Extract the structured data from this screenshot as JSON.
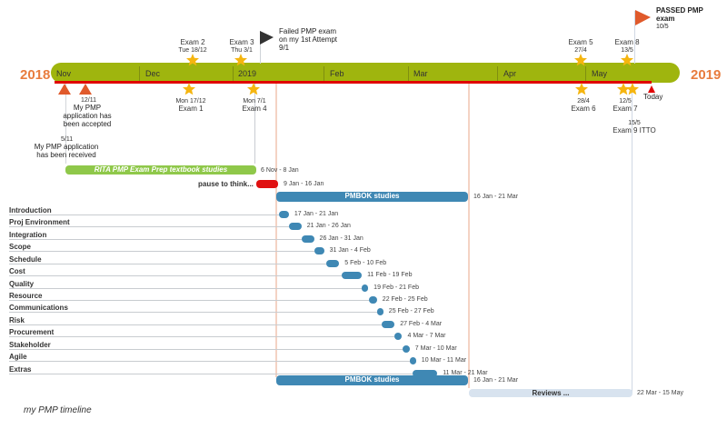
{
  "colors": {
    "timeline_band": "#9fb50e",
    "timeline_red": "#e00000",
    "star": "#f5b50f",
    "triangle": "#e05a2b",
    "year": "#e87c3e",
    "green_bar": "#8fc84a",
    "blue_bar": "#3f88b4",
    "red_bar": "#e01010",
    "review_bar": "#d8e3ef"
  },
  "timeline": {
    "year_start": "2018",
    "year_end": "2019",
    "months": [
      "Nov",
      "Dec",
      "2019",
      "Feb",
      "Mar",
      "Apr",
      "May"
    ]
  },
  "top_events": [
    {
      "title": "Exam 2",
      "date": "Tue 18/12"
    },
    {
      "title": "Exam 3",
      "date": "Thu 3/1"
    },
    {
      "title": "Exam 5",
      "date": "27/4"
    },
    {
      "title": "Exam 8",
      "date": "13/5"
    }
  ],
  "top_flags": {
    "failed": {
      "text1": "Failed PMP exam",
      "text2": "on my 1st Attempt",
      "date": "9/1"
    },
    "passed": {
      "text1": "PASSED PMP",
      "text2": "exam",
      "date": "10/5"
    }
  },
  "bottom_events": [
    {
      "date": "Mon 17/12",
      "title": "Exam 1"
    },
    {
      "date": "Mon 7/1",
      "title": "Exam 4"
    },
    {
      "date": "28/4",
      "title": "Exam 6"
    },
    {
      "date": "12/5",
      "title": "Exam 7"
    },
    {
      "date": "15/5",
      "title": "Exam 9 ITTO"
    }
  ],
  "milestones": {
    "accepted": {
      "date": "12/11",
      "lines": [
        "My PMP",
        "application has",
        "been accepted"
      ]
    },
    "received": {
      "date": "5/11",
      "lines": [
        "My PMP application",
        "has been received"
      ]
    },
    "today": "Today"
  },
  "phases": {
    "rita": {
      "label": "RITA PMP Exam Prep textbook studies",
      "dates": "6 Nov - 8 Jan"
    },
    "pause": {
      "label": "pause to think...",
      "dates": "9 Jan - 16 Jan"
    },
    "pmbok_top": {
      "label": "PMBOK studies",
      "dates": "16 Jan - 21 Mar"
    },
    "pmbok_bottom": {
      "label": "PMBOK studies",
      "dates": "16 Jan - 21 Mar"
    },
    "reviews": {
      "label": "Reviews ...",
      "dates": "22 Mar - 15 May"
    }
  },
  "tasks": [
    {
      "label": "Introduction",
      "dates": "17 Jan - 21 Jan",
      "start": 17,
      "end": 21
    },
    {
      "label": "Proj Environment",
      "dates": "21 Jan - 26 Jan",
      "start": 21,
      "end": 26
    },
    {
      "label": "Integration",
      "dates": "26 Jan - 31 Jan",
      "start": 26,
      "end": 31
    },
    {
      "label": "Scope",
      "dates": "31 Jan - 4 Feb",
      "start": 31,
      "end": 35
    },
    {
      "label": "Schedule",
      "dates": "5 Feb - 10 Feb",
      "start": 36,
      "end": 41
    },
    {
      "label": "Cost",
      "dates": "11 Feb - 19 Feb",
      "start": 42,
      "end": 50
    },
    {
      "label": "Quality",
      "dates": "19 Feb - 21 Feb",
      "start": 50,
      "end": 52
    },
    {
      "label": "Resource",
      "dates": "22 Feb - 25 Feb",
      "start": 53,
      "end": 56
    },
    {
      "label": "Communications",
      "dates": "25 Feb - 27 Feb",
      "start": 56,
      "end": 58
    },
    {
      "label": "Risk",
      "dates": "27 Feb - 4 Mar",
      "start": 58,
      "end": 63
    },
    {
      "label": "Procurement",
      "dates": "4 Mar - 7 Mar",
      "start": 63,
      "end": 66
    },
    {
      "label": "Stakeholder",
      "dates": "7 Mar - 10 Mar",
      "start": 66,
      "end": 69
    },
    {
      "label": "Agile",
      "dates": "10 Mar - 11 Mar",
      "start": 69,
      "end": 70
    },
    {
      "label": "Extras",
      "dates": "11 Mar - 21 Mar",
      "start": 70,
      "end": 80
    }
  ],
  "caption": "my PMP timeline"
}
